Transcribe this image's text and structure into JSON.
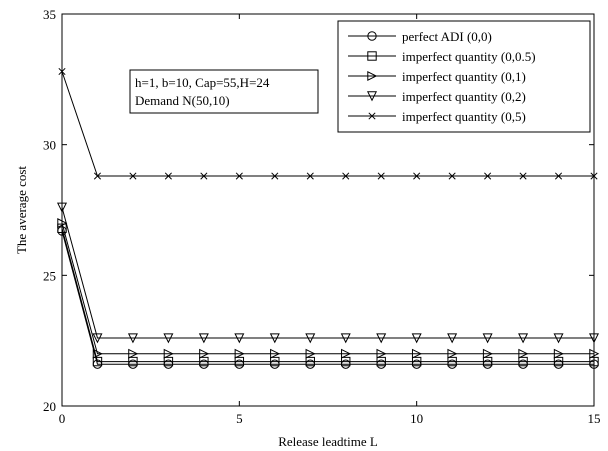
{
  "chart_data": {
    "type": "line",
    "title": "",
    "xlabel": "Release leadtime L",
    "ylabel": "The average cost",
    "xlim": [
      0,
      15
    ],
    "ylim": [
      20,
      35
    ],
    "xticks": [
      0,
      5,
      10,
      15
    ],
    "yticks": [
      20,
      25,
      30,
      35
    ],
    "x": [
      0,
      1,
      2,
      3,
      4,
      5,
      6,
      7,
      8,
      9,
      10,
      11,
      12,
      13,
      14,
      15
    ],
    "grid": false,
    "legend_position": "top-right",
    "annotation_lines": [
      "h=1, b=10, Cap=55,H=24",
      "Demand N(50,10)"
    ],
    "series": [
      {
        "name": "perfect ADI (0,0)",
        "marker": "circle",
        "values": [
          26.7,
          21.6,
          21.6,
          21.6,
          21.6,
          21.6,
          21.6,
          21.6,
          21.6,
          21.6,
          21.6,
          21.6,
          21.6,
          21.6,
          21.6,
          21.6
        ]
      },
      {
        "name": "imperfect quantity (0,0.5)",
        "marker": "square",
        "values": [
          26.8,
          21.7,
          21.7,
          21.7,
          21.7,
          21.7,
          21.7,
          21.7,
          21.7,
          21.7,
          21.7,
          21.7,
          21.7,
          21.7,
          21.7,
          21.7
        ]
      },
      {
        "name": "imperfect quantity (0,1)",
        "marker": "triangle-right",
        "values": [
          27.0,
          22.0,
          22.0,
          22.0,
          22.0,
          22.0,
          22.0,
          22.0,
          22.0,
          22.0,
          22.0,
          22.0,
          22.0,
          22.0,
          22.0,
          22.0
        ]
      },
      {
        "name": "imperfect quantity (0,2)",
        "marker": "triangle-down",
        "values": [
          27.6,
          22.6,
          22.6,
          22.6,
          22.6,
          22.6,
          22.6,
          22.6,
          22.6,
          22.6,
          22.6,
          22.6,
          22.6,
          22.6,
          22.6,
          22.6
        ]
      },
      {
        "name": "imperfect quantity (0,5)",
        "marker": "x",
        "values": [
          32.8,
          28.8,
          28.8,
          28.8,
          28.8,
          28.8,
          28.8,
          28.8,
          28.8,
          28.8,
          28.8,
          28.8,
          28.8,
          28.8,
          28.8,
          28.8
        ]
      }
    ]
  },
  "colors": {
    "line": "#000000",
    "background": "#ffffff"
  }
}
